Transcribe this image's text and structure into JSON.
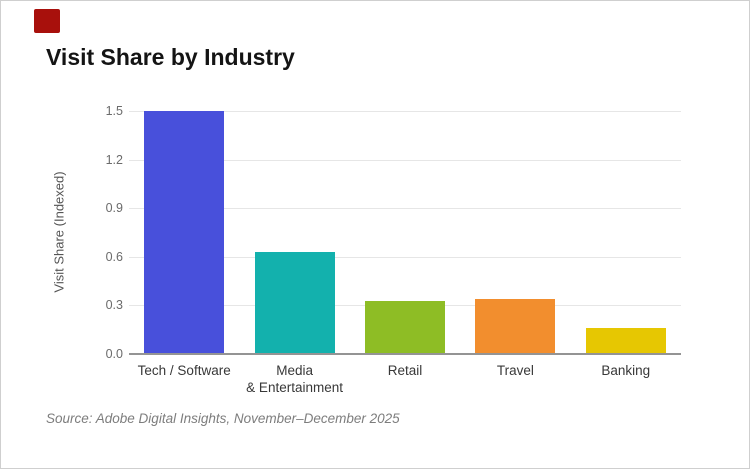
{
  "logo": {
    "label": "adobe-logo-mark",
    "color": "#A8100C"
  },
  "header": {
    "title": "Visit Share by Industry"
  },
  "chart_data": {
    "type": "bar",
    "categories": [
      "Tech / Software",
      "Media\n& Entertainment",
      "Retail",
      "Travel",
      "Banking"
    ],
    "values": [
      1.5,
      0.63,
      0.33,
      0.34,
      0.16
    ],
    "bar_colors": [
      "#4850DB",
      "#13B1AD",
      "#8EBD25",
      "#F28E2E",
      "#E6C702"
    ],
    "title": "Visit Share by Industry",
    "xlabel": "",
    "ylabel": "Visit Share (Indexed)",
    "ylim": [
      0,
      1.5
    ],
    "yticks": [
      0.0,
      0.3,
      0.6,
      0.9,
      1.2,
      1.5
    ],
    "grid": true,
    "legend": false
  },
  "footer": {
    "source": "Source: Adobe Digital Insights, November–December 2025"
  },
  "colors": {
    "grid": "#e6e6e6",
    "axis_line": "#949494",
    "tick_text": "#6b6b6b",
    "category_text": "#383838",
    "ylabel_text": "#555555",
    "source_text": "#7d7d7d"
  }
}
